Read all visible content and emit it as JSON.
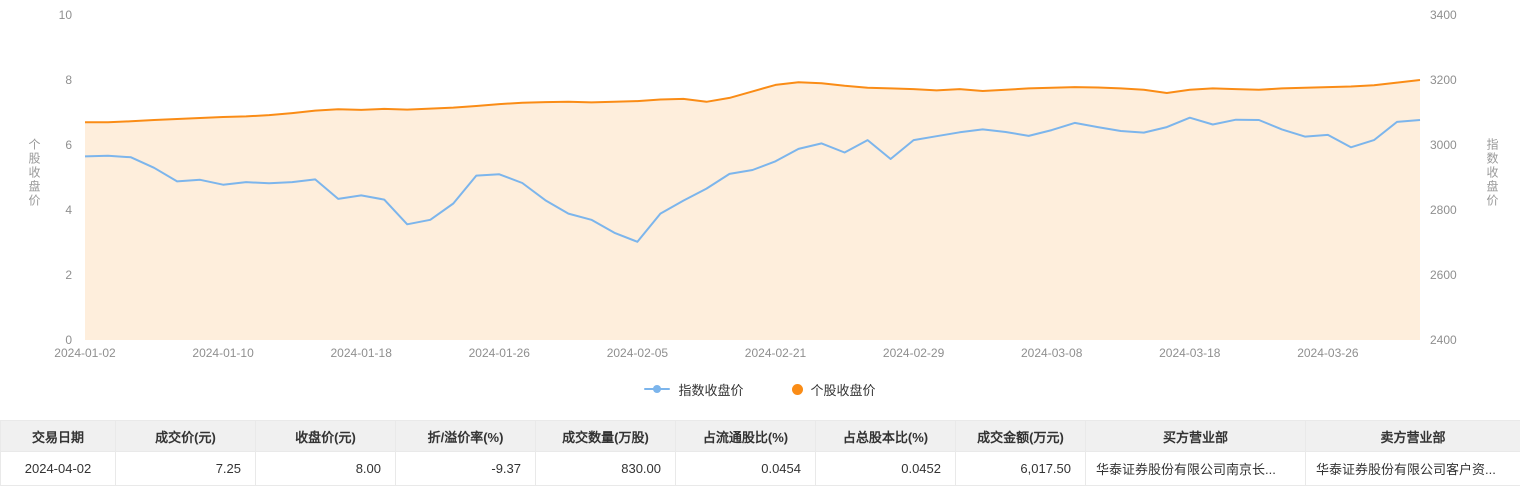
{
  "chart": {
    "left_axis_title": "个股收盘价",
    "right_axis_title": "指数收盘价",
    "legend": [
      {
        "label": "指数收盘价",
        "color": "#7cb5ec",
        "icon": "line"
      },
      {
        "label": "个股收盘价",
        "color": "#fa8c16",
        "icon": "circle"
      }
    ]
  },
  "chart_data": {
    "type": "line",
    "title": "",
    "x_tick_labels": [
      "2024-01-02",
      "2024-01-10",
      "2024-01-18",
      "2024-01-26",
      "2024-02-05",
      "2024-02-21",
      "2024-02-29",
      "2024-03-08",
      "2024-03-18",
      "2024-03-26"
    ],
    "x_tick_indices": [
      0,
      6,
      12,
      18,
      24,
      30,
      36,
      42,
      48,
      54
    ],
    "left_axis": {
      "title": "个股收盘价",
      "min": 0,
      "max": 10,
      "ticks": [
        10,
        8,
        6,
        4,
        2,
        0
      ]
    },
    "right_axis": {
      "title": "指数收盘价",
      "min": 2400,
      "max": 3400,
      "ticks": [
        3400,
        3200,
        3000,
        2800,
        2600,
        2400
      ]
    },
    "grid": false,
    "legend_position": "bottom",
    "series": [
      {
        "name": "个股收盘价",
        "axis": "left",
        "color": "#fa8c16",
        "area_fill": "rgba(250,140,22,0.15)",
        "values": [
          6.7,
          6.7,
          6.73,
          6.77,
          6.8,
          6.83,
          6.86,
          6.88,
          6.92,
          6.98,
          7.06,
          7.1,
          7.08,
          7.11,
          7.09,
          7.12,
          7.15,
          7.2,
          7.26,
          7.3,
          7.32,
          7.33,
          7.31,
          7.33,
          7.35,
          7.4,
          7.42,
          7.33,
          7.45,
          7.65,
          7.85,
          7.93,
          7.9,
          7.82,
          7.76,
          7.74,
          7.72,
          7.68,
          7.72,
          7.66,
          7.7,
          7.74,
          7.76,
          7.78,
          7.77,
          7.74,
          7.7,
          7.6,
          7.7,
          7.74,
          7.72,
          7.7,
          7.74,
          7.76,
          7.78,
          7.8,
          7.84,
          7.92,
          8.0
        ]
      },
      {
        "name": "指数收盘价",
        "axis": "right",
        "color": "#7cb5ec",
        "values": [
          2965,
          2967,
          2962,
          2930,
          2888,
          2893,
          2878,
          2886,
          2882,
          2886,
          2894,
          2834,
          2845,
          2832,
          2756,
          2770,
          2820,
          2906,
          2910,
          2883,
          2830,
          2789,
          2770,
          2730,
          2702,
          2789,
          2829,
          2866,
          2911,
          2923,
          2950,
          2988,
          3005,
          2977,
          3015,
          2957,
          3015,
          3027,
          3039,
          3048,
          3040,
          3028,
          3046,
          3068,
          3055,
          3043,
          3038,
          3055,
          3084,
          3063,
          3078,
          3077,
          3048,
          3026,
          3031,
          2993,
          3015,
          3071,
          3077
        ]
      }
    ]
  },
  "table": {
    "headers": [
      "交易日期",
      "成交价(元)",
      "收盘价(元)",
      "折/溢价率(%)",
      "成交数量(万股)",
      "占流通股比(%)",
      "占总股本比(%)",
      "成交金额(万元)",
      "买方营业部",
      "卖方营业部"
    ],
    "rows": [
      [
        "2024-04-02",
        "7.25",
        "8.00",
        "-9.37",
        "830.00",
        "0.0454",
        "0.0452",
        "6,017.50",
        "华泰证券股份有限公司南京长...",
        "华泰证券股份有限公司客户资..."
      ]
    ]
  }
}
